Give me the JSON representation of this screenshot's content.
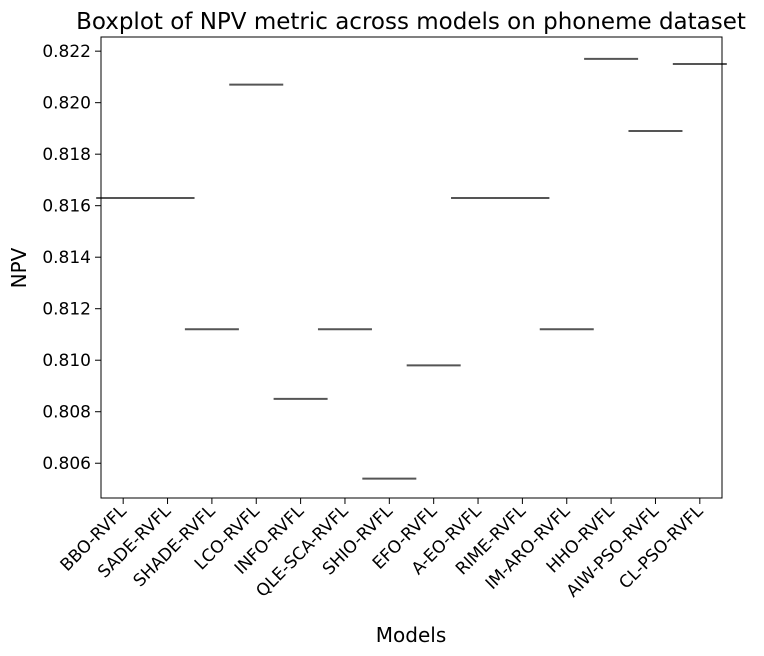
{
  "chart_data": {
    "type": "box",
    "title": "Boxplot of NPV metric across models on phoneme dataset",
    "xlabel": "Models",
    "ylabel": "NPV",
    "categories": [
      "BBO-RVFL",
      "SADE-RVFL",
      "SHADE-RVFL",
      "LCO-RVFL",
      "INFO-RVFL",
      "QLE-SCA-RVFL",
      "SHIO-RVFL",
      "EFO-RVFL",
      "A-EO-RVFL",
      "RIME-RVFL",
      "IM-ARO-RVFL",
      "HHO-RVFL",
      "AIW-PSO-RVFL",
      "CL-PSO-RVFL"
    ],
    "values": [
      0.8163,
      0.8163,
      0.8112,
      0.8207,
      0.8085,
      0.8112,
      0.8054,
      0.8098,
      0.8163,
      0.8163,
      0.8112,
      0.8217,
      0.8189,
      0.8215
    ],
    "ylim": [
      0.80465,
      0.82255
    ],
    "yticks": [
      "0.806",
      "0.808",
      "0.810",
      "0.812",
      "0.814",
      "0.816",
      "0.818",
      "0.820",
      "0.822"
    ],
    "ytick_values": [
      0.806,
      0.808,
      0.81,
      0.812,
      0.814,
      0.816,
      0.818,
      0.82,
      0.822
    ],
    "line_color": "#555555",
    "grid": false
  }
}
